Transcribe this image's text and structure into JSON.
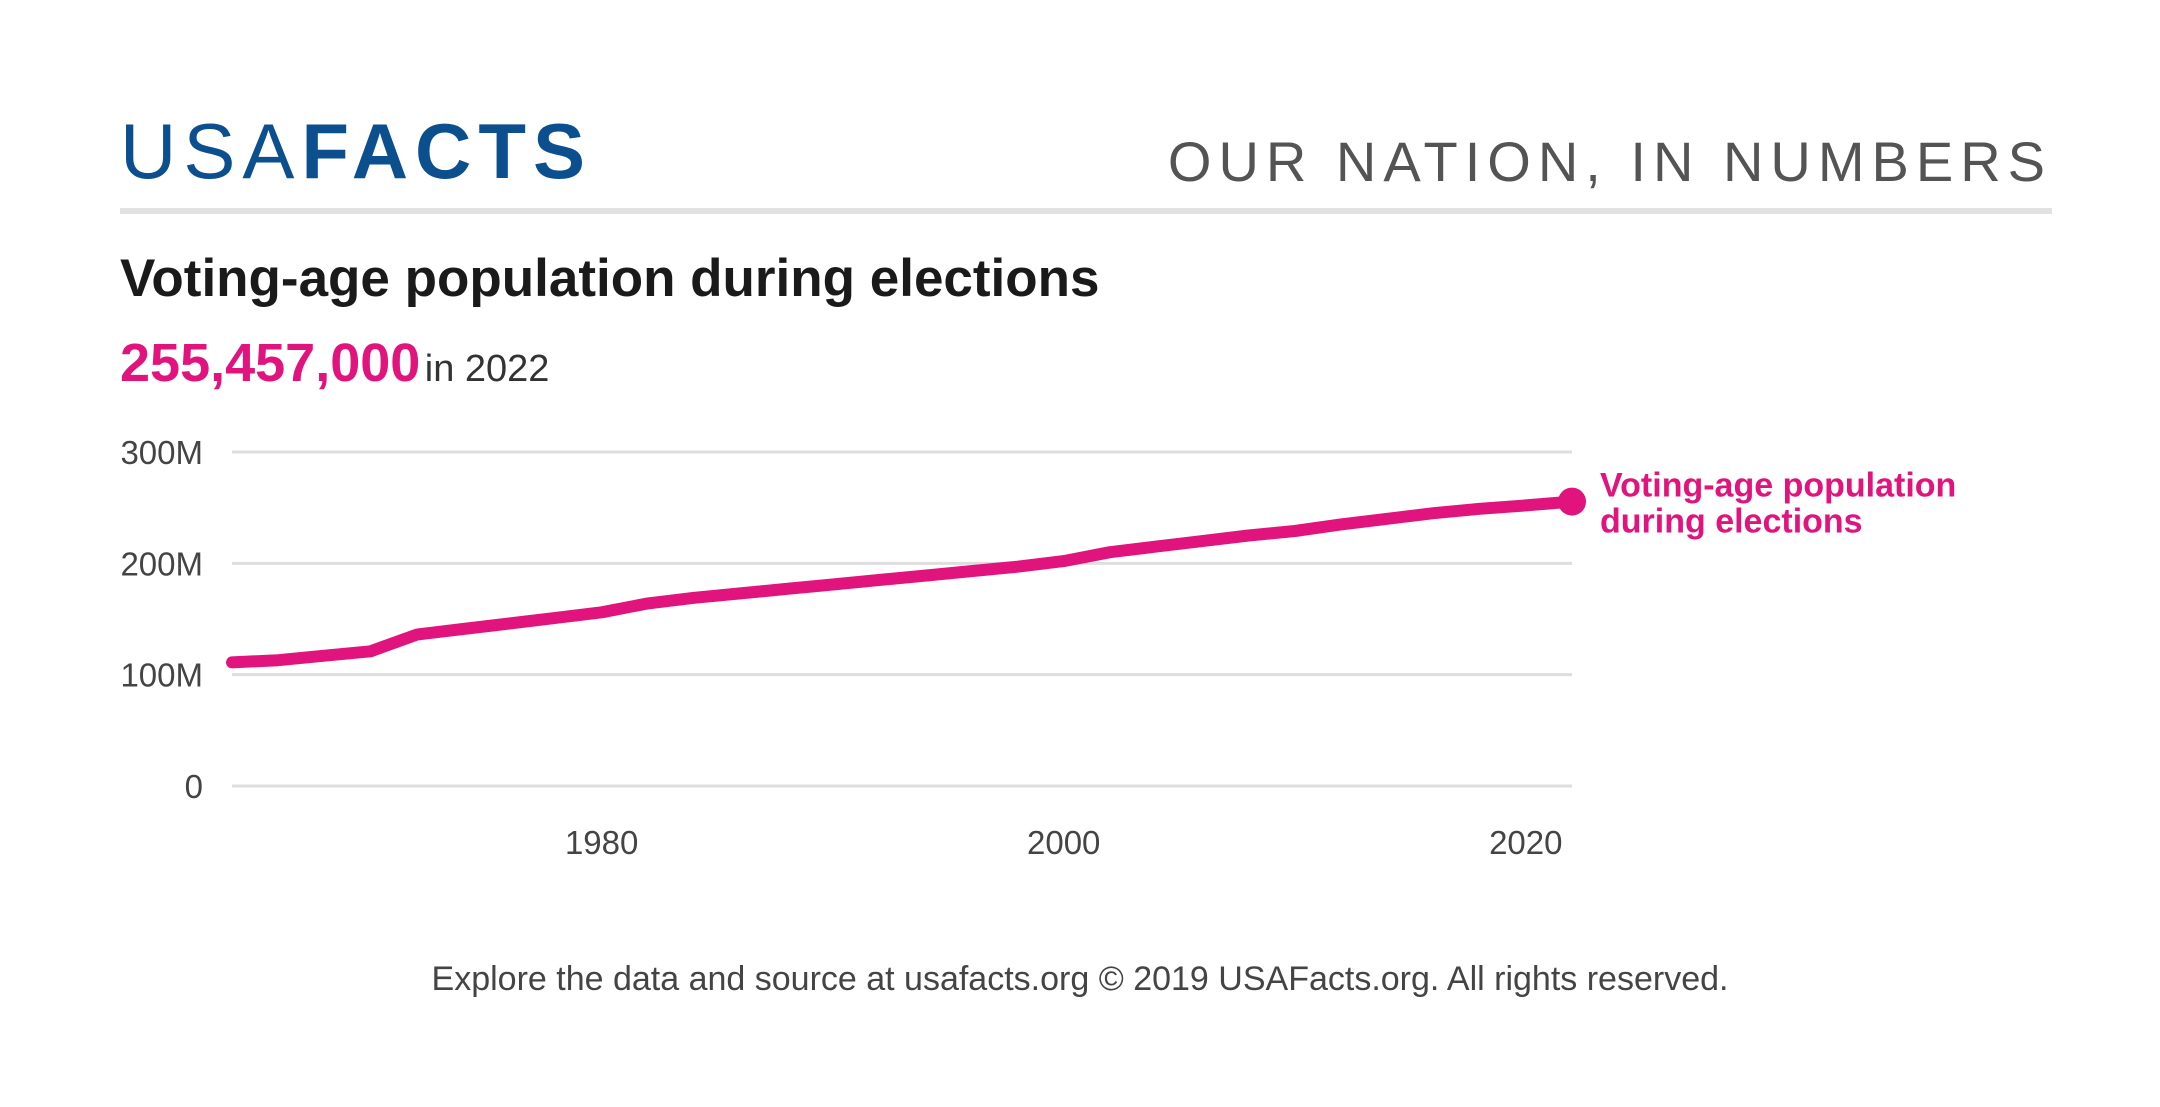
{
  "brand": {
    "logo_light": "USA",
    "logo_bold": "FACTS",
    "tagline": "OUR NATION, IN NUMBERS",
    "color": "#0b4f8f"
  },
  "headline": {
    "value": "255,457,000",
    "suffix": "in 2022",
    "color": "#e0147c"
  },
  "footer": "Explore the data and source at usafacts.org © 2019 USAFacts.org. All rights reserved.",
  "chart_data": {
    "type": "line",
    "title": "Voting-age population during elections",
    "xlabel": "",
    "ylabel": "",
    "xlim": [
      1964,
      2022
    ],
    "ylim": [
      0,
      300
    ],
    "y_unit": "millions",
    "y_ticks": [
      0,
      100,
      200,
      300
    ],
    "y_tick_labels": [
      "0",
      "100M",
      "200M",
      "300M"
    ],
    "x_ticks": [
      1980,
      2000,
      2020
    ],
    "x_tick_labels": [
      "1980",
      "2000",
      "2020"
    ],
    "grid": true,
    "series": [
      {
        "name": "Voting-age population during elections",
        "label": "Voting-age population during elections",
        "label_lines": [
          "Voting-age population",
          "during elections"
        ],
        "color": "#e0147c",
        "x": [
          1964,
          1966,
          1968,
          1970,
          1972,
          1974,
          1976,
          1978,
          1980,
          1982,
          1984,
          1986,
          1988,
          1990,
          1992,
          1994,
          1996,
          1998,
          2000,
          2002,
          2004,
          2006,
          2008,
          2010,
          2012,
          2014,
          2016,
          2018,
          2020,
          2022
        ],
        "values": [
          111,
          113,
          117,
          121,
          136,
          141,
          146,
          151,
          156,
          164,
          169,
          173,
          177,
          181,
          185,
          189,
          193,
          197,
          202,
          210,
          215,
          220,
          225,
          229,
          235,
          240,
          245,
          249,
          252,
          255.457
        ]
      }
    ]
  }
}
